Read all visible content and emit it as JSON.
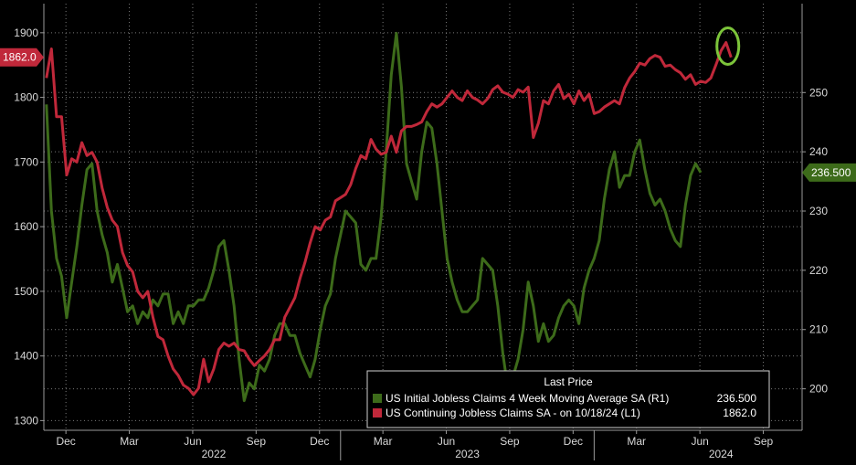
{
  "chart_data": {
    "type": "line",
    "colors": {
      "background": "#000000",
      "continuing": "#c0283a",
      "initial": "#3d6b1a",
      "grid": "#7a7a7a",
      "highlight_circle": "#7cc43a"
    },
    "y_left": {
      "ticks": [
        "1300",
        "1400",
        "1500",
        "1600",
        "1700",
        "1800",
        "1900"
      ],
      "ylim": [
        1285,
        1945
      ]
    },
    "y_right": {
      "ticks": [
        "200",
        "210",
        "220",
        "230",
        "240",
        "250"
      ],
      "ylim": [
        193,
        265
      ]
    },
    "x_months": [
      {
        "label": "Dec",
        "x": 2021.917
      },
      {
        "label": "Mar",
        "x": 2022.167
      },
      {
        "label": "Jun",
        "x": 2022.417
      },
      {
        "label": "Sep",
        "x": 2022.667
      },
      {
        "label": "Dec",
        "x": 2022.917
      },
      {
        "label": "Mar",
        "x": 2023.167
      },
      {
        "label": "Jun",
        "x": 2023.417
      },
      {
        "label": "Sep",
        "x": 2023.667
      },
      {
        "label": "Dec",
        "x": 2023.917
      },
      {
        "label": "Mar",
        "x": 2024.167
      },
      {
        "label": "Jun",
        "x": 2024.417
      },
      {
        "label": "Sep",
        "x": 2024.667
      }
    ],
    "x_years": [
      {
        "label": "2022",
        "x": 2022.5
      },
      {
        "label": "2023",
        "x": 2023.5
      },
      {
        "label": "2024",
        "x": 2024.5
      }
    ],
    "xlim": [
      2021.83,
      2024.82
    ],
    "last_values": {
      "continuing": "1862.0",
      "initial": "236.500"
    },
    "legend": {
      "title": "Last Price",
      "entries": [
        {
          "text": "US Initial Jobless Claims 4 Week Moving Average SA (R1)",
          "value": "236.500"
        },
        {
          "text": "US Continuing Jobless Claims SA -  on 10/18/24  (L1)",
          "value": "1862.0"
        }
      ]
    },
    "series": [
      {
        "name": "US Continuing Jobless Claims SA -  on 10/18/24  (L1)",
        "axis": "left",
        "points": [
          [
            2021.84,
            1830
          ],
          [
            2021.86,
            1875
          ],
          [
            2021.88,
            1770
          ],
          [
            2021.9,
            1770
          ],
          [
            2021.92,
            1680
          ],
          [
            2021.94,
            1705
          ],
          [
            2021.96,
            1700
          ],
          [
            2021.98,
            1730
          ],
          [
            2022.0,
            1710
          ],
          [
            2022.02,
            1715
          ],
          [
            2022.04,
            1700
          ],
          [
            2022.06,
            1660
          ],
          [
            2022.08,
            1630
          ],
          [
            2022.1,
            1610
          ],
          [
            2022.12,
            1600
          ],
          [
            2022.14,
            1560
          ],
          [
            2022.16,
            1540
          ],
          [
            2022.18,
            1530
          ],
          [
            2022.2,
            1500
          ],
          [
            2022.22,
            1490
          ],
          [
            2022.24,
            1500
          ],
          [
            2022.26,
            1460
          ],
          [
            2022.28,
            1430
          ],
          [
            2022.3,
            1425
          ],
          [
            2022.32,
            1400
          ],
          [
            2022.34,
            1380
          ],
          [
            2022.36,
            1370
          ],
          [
            2022.38,
            1355
          ],
          [
            2022.4,
            1350
          ],
          [
            2022.42,
            1340
          ],
          [
            2022.44,
            1350
          ],
          [
            2022.46,
            1395
          ],
          [
            2022.48,
            1360
          ],
          [
            2022.5,
            1380
          ],
          [
            2022.52,
            1410
          ],
          [
            2022.54,
            1420
          ],
          [
            2022.56,
            1415
          ],
          [
            2022.58,
            1420
          ],
          [
            2022.6,
            1410
          ],
          [
            2022.62,
            1408
          ],
          [
            2022.64,
            1395
          ],
          [
            2022.66,
            1385
          ],
          [
            2022.68,
            1393
          ],
          [
            2022.7,
            1400
          ],
          [
            2022.72,
            1410
          ],
          [
            2022.74,
            1425
          ],
          [
            2022.76,
            1425
          ],
          [
            2022.78,
            1460
          ],
          [
            2022.8,
            1475
          ],
          [
            2022.82,
            1490
          ],
          [
            2022.84,
            1520
          ],
          [
            2022.86,
            1545
          ],
          [
            2022.88,
            1575
          ],
          [
            2022.9,
            1600
          ],
          [
            2022.92,
            1595
          ],
          [
            2022.94,
            1610
          ],
          [
            2022.96,
            1615
          ],
          [
            2022.98,
            1640
          ],
          [
            2023.0,
            1645
          ],
          [
            2023.02,
            1650
          ],
          [
            2023.04,
            1665
          ],
          [
            2023.06,
            1690
          ],
          [
            2023.08,
            1710
          ],
          [
            2023.1,
            1705
          ],
          [
            2023.12,
            1735
          ],
          [
            2023.14,
            1720
          ],
          [
            2023.16,
            1712
          ],
          [
            2023.18,
            1715
          ],
          [
            2023.2,
            1740
          ],
          [
            2023.22,
            1715
          ],
          [
            2023.24,
            1748
          ],
          [
            2023.26,
            1755
          ],
          [
            2023.28,
            1755
          ],
          [
            2023.3,
            1758
          ],
          [
            2023.32,
            1762
          ],
          [
            2023.34,
            1778
          ],
          [
            2023.36,
            1790
          ],
          [
            2023.38,
            1785
          ],
          [
            2023.4,
            1790
          ],
          [
            2023.42,
            1800
          ],
          [
            2023.44,
            1810
          ],
          [
            2023.46,
            1800
          ],
          [
            2023.48,
            1795
          ],
          [
            2023.5,
            1810
          ],
          [
            2023.52,
            1800
          ],
          [
            2023.54,
            1796
          ],
          [
            2023.56,
            1790
          ],
          [
            2023.58,
            1798
          ],
          [
            2023.6,
            1812
          ],
          [
            2023.62,
            1818
          ],
          [
            2023.64,
            1808
          ],
          [
            2023.66,
            1805
          ],
          [
            2023.68,
            1800
          ],
          [
            2023.7,
            1812
          ],
          [
            2023.72,
            1808
          ],
          [
            2023.74,
            1816
          ],
          [
            2023.76,
            1738
          ],
          [
            2023.78,
            1760
          ],
          [
            2023.8,
            1795
          ],
          [
            2023.82,
            1790
          ],
          [
            2023.84,
            1810
          ],
          [
            2023.86,
            1820
          ],
          [
            2023.88,
            1798
          ],
          [
            2023.9,
            1805
          ],
          [
            2023.92,
            1790
          ],
          [
            2023.94,
            1810
          ],
          [
            2023.96,
            1795
          ],
          [
            2023.98,
            1805
          ],
          [
            2024.0,
            1775
          ],
          [
            2024.02,
            1778
          ],
          [
            2024.04,
            1785
          ],
          [
            2024.06,
            1790
          ],
          [
            2024.08,
            1795
          ],
          [
            2024.1,
            1790
          ],
          [
            2024.12,
            1815
          ],
          [
            2024.14,
            1830
          ],
          [
            2024.16,
            1840
          ],
          [
            2024.18,
            1853
          ],
          [
            2024.2,
            1850
          ],
          [
            2024.22,
            1860
          ],
          [
            2024.24,
            1865
          ],
          [
            2024.26,
            1862
          ],
          [
            2024.28,
            1848
          ],
          [
            2024.3,
            1850
          ],
          [
            2024.32,
            1843
          ],
          [
            2024.34,
            1838
          ],
          [
            2024.36,
            1828
          ],
          [
            2024.38,
            1835
          ],
          [
            2024.4,
            1820
          ],
          [
            2024.42,
            1825
          ],
          [
            2024.44,
            1823
          ],
          [
            2024.46,
            1830
          ],
          [
            2024.48,
            1850
          ],
          [
            2024.5,
            1872
          ],
          [
            2024.52,
            1885
          ],
          [
            2024.54,
            1862
          ]
        ]
      },
      {
        "name": "US Initial Jobless Claims 4 Week Moving Average SA (R1)",
        "axis": "right",
        "points": [
          [
            2021.84,
            248
          ],
          [
            2021.86,
            230
          ],
          [
            2021.88,
            222
          ],
          [
            2021.9,
            219
          ],
          [
            2021.92,
            212
          ],
          [
            2021.94,
            218
          ],
          [
            2021.96,
            224
          ],
          [
            2021.98,
            231
          ],
          [
            2022.0,
            237
          ],
          [
            2022.02,
            238
          ],
          [
            2022.04,
            230
          ],
          [
            2022.06,
            226
          ],
          [
            2022.08,
            223
          ],
          [
            2022.1,
            218
          ],
          [
            2022.12,
            221
          ],
          [
            2022.14,
            217
          ],
          [
            2022.16,
            213
          ],
          [
            2022.18,
            214
          ],
          [
            2022.2,
            211
          ],
          [
            2022.22,
            213
          ],
          [
            2022.24,
            212
          ],
          [
            2022.26,
            215
          ],
          [
            2022.28,
            214
          ],
          [
            2022.3,
            216
          ],
          [
            2022.32,
            216
          ],
          [
            2022.34,
            211
          ],
          [
            2022.36,
            213
          ],
          [
            2022.38,
            211
          ],
          [
            2022.4,
            214
          ],
          [
            2022.42,
            214
          ],
          [
            2022.44,
            215
          ],
          [
            2022.46,
            215
          ],
          [
            2022.48,
            217
          ],
          [
            2022.5,
            220
          ],
          [
            2022.52,
            224
          ],
          [
            2022.54,
            225
          ],
          [
            2022.56,
            220
          ],
          [
            2022.58,
            214
          ],
          [
            2022.6,
            205
          ],
          [
            2022.62,
            198
          ],
          [
            2022.64,
            201
          ],
          [
            2022.66,
            200
          ],
          [
            2022.68,
            204
          ],
          [
            2022.7,
            203
          ],
          [
            2022.72,
            205
          ],
          [
            2022.74,
            209
          ],
          [
            2022.76,
            211
          ],
          [
            2022.78,
            211
          ],
          [
            2022.8,
            209
          ],
          [
            2022.82,
            209
          ],
          [
            2022.84,
            206
          ],
          [
            2022.86,
            204
          ],
          [
            2022.88,
            202
          ],
          [
            2022.9,
            205
          ],
          [
            2022.92,
            210
          ],
          [
            2022.94,
            214
          ],
          [
            2022.96,
            216
          ],
          [
            2022.98,
            222
          ],
          [
            2023.0,
            226
          ],
          [
            2023.02,
            230
          ],
          [
            2023.04,
            229
          ],
          [
            2023.06,
            228
          ],
          [
            2023.08,
            221
          ],
          [
            2023.1,
            220
          ],
          [
            2023.12,
            222
          ],
          [
            2023.14,
            222
          ],
          [
            2023.16,
            229
          ],
          [
            2023.18,
            240
          ],
          [
            2023.2,
            253
          ],
          [
            2023.22,
            260
          ],
          [
            2023.24,
            251
          ],
          [
            2023.26,
            238
          ],
          [
            2023.28,
            235
          ],
          [
            2023.3,
            232
          ],
          [
            2023.32,
            240
          ],
          [
            2023.34,
            245
          ],
          [
            2023.36,
            244
          ],
          [
            2023.38,
            238
          ],
          [
            2023.4,
            230
          ],
          [
            2023.42,
            222
          ],
          [
            2023.44,
            218
          ],
          [
            2023.46,
            215
          ],
          [
            2023.48,
            213
          ],
          [
            2023.5,
            213
          ],
          [
            2023.52,
            214
          ],
          [
            2023.54,
            215
          ],
          [
            2023.56,
            222
          ],
          [
            2023.58,
            221
          ],
          [
            2023.6,
            220
          ],
          [
            2023.62,
            214
          ],
          [
            2023.64,
            206
          ],
          [
            2023.66,
            200
          ],
          [
            2023.68,
            202
          ],
          [
            2023.7,
            205
          ],
          [
            2023.72,
            210
          ],
          [
            2023.74,
            218
          ],
          [
            2023.76,
            214
          ],
          [
            2023.78,
            208
          ],
          [
            2023.8,
            211
          ],
          [
            2023.82,
            208
          ],
          [
            2023.84,
            209
          ],
          [
            2023.86,
            212
          ],
          [
            2023.88,
            214
          ],
          [
            2023.9,
            215
          ],
          [
            2023.92,
            214
          ],
          [
            2023.94,
            211
          ],
          [
            2023.96,
            217
          ],
          [
            2023.98,
            220
          ],
          [
            2024.0,
            222
          ],
          [
            2024.02,
            225
          ],
          [
            2024.04,
            232
          ],
          [
            2024.06,
            237
          ],
          [
            2024.08,
            240
          ],
          [
            2024.1,
            234
          ],
          [
            2024.12,
            236
          ],
          [
            2024.14,
            236
          ],
          [
            2024.16,
            240
          ],
          [
            2024.18,
            242
          ],
          [
            2024.2,
            237
          ],
          [
            2024.22,
            233
          ],
          [
            2024.24,
            231
          ],
          [
            2024.26,
            232
          ],
          [
            2024.28,
            230
          ],
          [
            2024.3,
            227
          ],
          [
            2024.32,
            225
          ],
          [
            2024.34,
            224
          ],
          [
            2024.36,
            231
          ],
          [
            2024.38,
            236
          ],
          [
            2024.4,
            238
          ],
          [
            2024.42,
            236.5
          ]
        ]
      }
    ]
  }
}
